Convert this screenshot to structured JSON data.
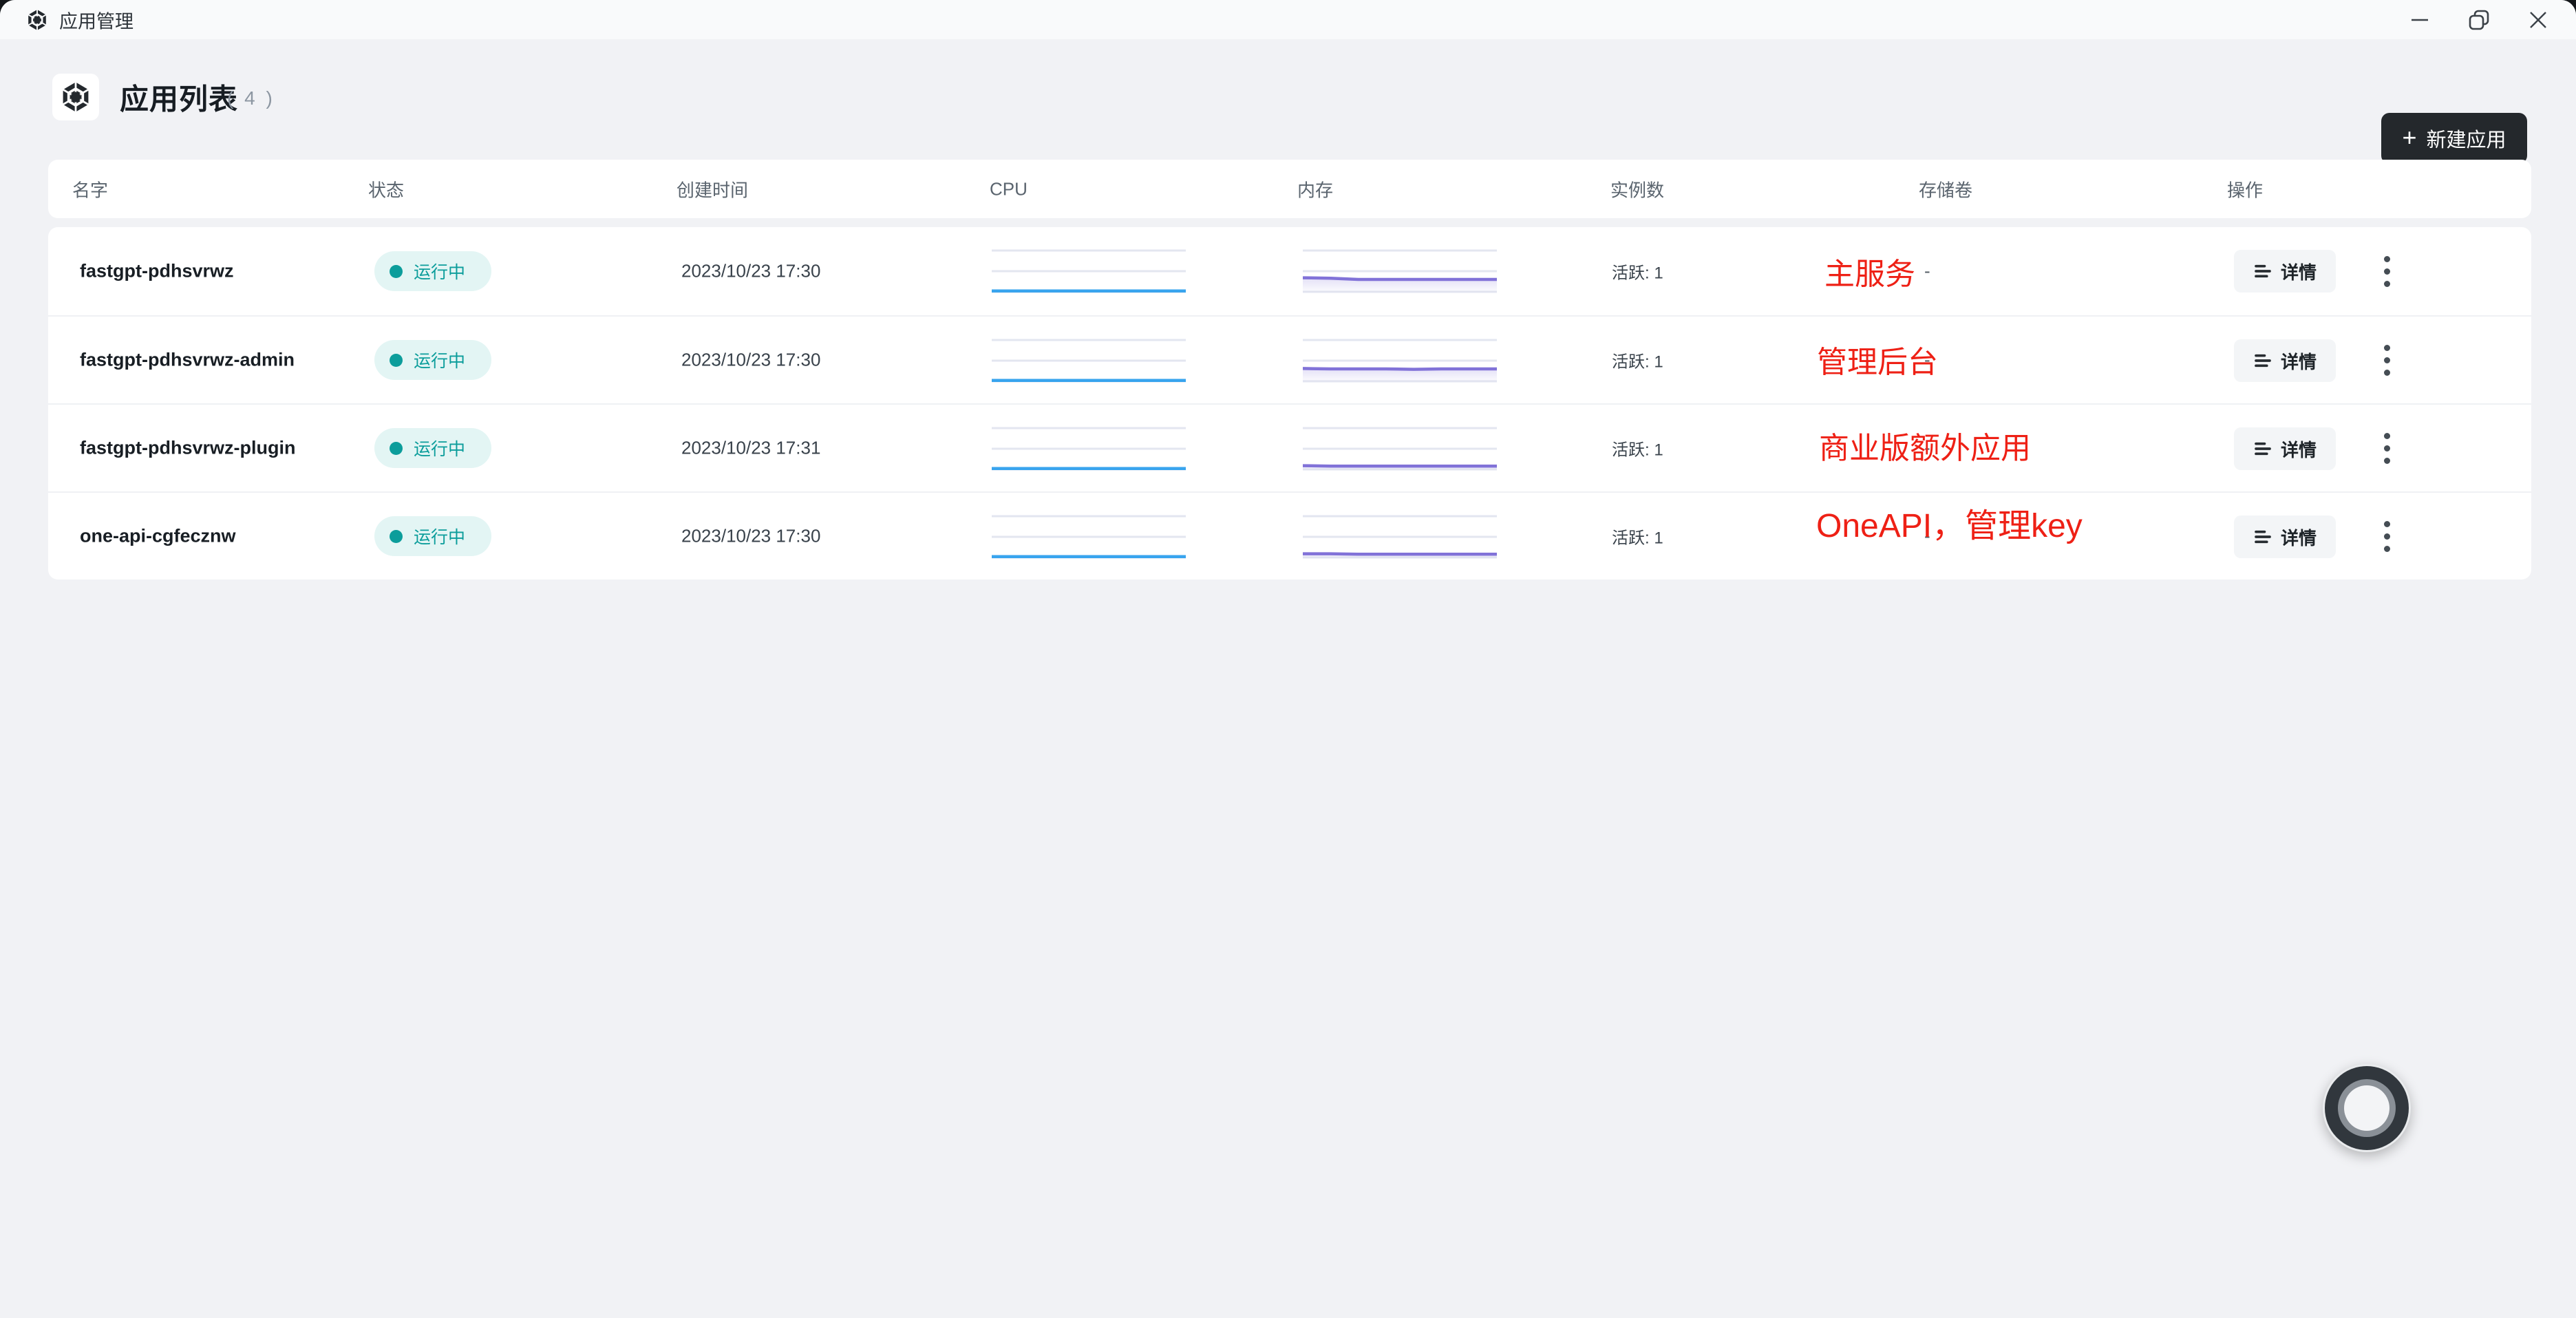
{
  "window": {
    "title": "应用管理"
  },
  "header": {
    "title": "应用列表",
    "count": "( 4 )",
    "new_app_label": "新建应用",
    "plus": "+"
  },
  "table": {
    "columns": [
      "名字",
      "状态",
      "创建时间",
      "CPU",
      "内存",
      "实例数",
      "存储卷",
      "操作"
    ],
    "rows": [
      {
        "name": "fastgpt-pdhsvrwz",
        "status": "运行中",
        "created": "2023/10/23 17:30",
        "instances": "活跃: 1",
        "storage": "-",
        "details_label": "详情",
        "annotation": "主服务",
        "cpu_series": [
          0.02,
          0.02,
          0.02,
          0.02,
          0.02,
          0.02,
          0.02,
          0.02
        ],
        "mem_series": [
          0.34,
          0.33,
          0.3,
          0.3,
          0.3,
          0.3,
          0.3,
          0.3
        ]
      },
      {
        "name": "fastgpt-pdhsvrwz-admin",
        "status": "运行中",
        "created": "2023/10/23 17:30",
        "instances": "活跃: 1",
        "storage": "-",
        "details_label": "详情",
        "annotation": "管理后台",
        "cpu_series": [
          0.02,
          0.02,
          0.02,
          0.02,
          0.02,
          0.02,
          0.02,
          0.02
        ],
        "mem_series": [
          0.31,
          0.3,
          0.3,
          0.3,
          0.29,
          0.3,
          0.3,
          0.3
        ]
      },
      {
        "name": "fastgpt-pdhsvrwz-plugin",
        "status": "运行中",
        "created": "2023/10/23 17:31",
        "instances": "活跃: 1",
        "storage": "-",
        "details_label": "详情",
        "annotation": "商业版额外应用",
        "cpu_series": [
          0.02,
          0.02,
          0.02,
          0.02,
          0.02,
          0.02,
          0.02,
          0.02
        ],
        "mem_series": [
          0.09,
          0.08,
          0.08,
          0.08,
          0.08,
          0.08,
          0.08,
          0.08
        ]
      },
      {
        "name": "one-api-cgfecznw",
        "status": "运行中",
        "created": "2023/10/23 17:30",
        "instances": "活跃: 1",
        "storage": "-",
        "details_label": "详情",
        "annotation": "OneAPI，管理key",
        "cpu_series": [
          0.02,
          0.02,
          0.02,
          0.02,
          0.02,
          0.02,
          0.02,
          0.02
        ],
        "mem_series": [
          0.09,
          0.09,
          0.08,
          0.08,
          0.08,
          0.08,
          0.08,
          0.08
        ]
      }
    ]
  },
  "colors": {
    "cpu": "#38A4EE",
    "mem": "#8172D8",
    "grid": "#E3E6F0",
    "annotation_red": "#EE2015",
    "status_teal": "#0C9D9B",
    "status_pill_bg": "#E3F5F4",
    "primary_button_bg": "#24282C"
  }
}
